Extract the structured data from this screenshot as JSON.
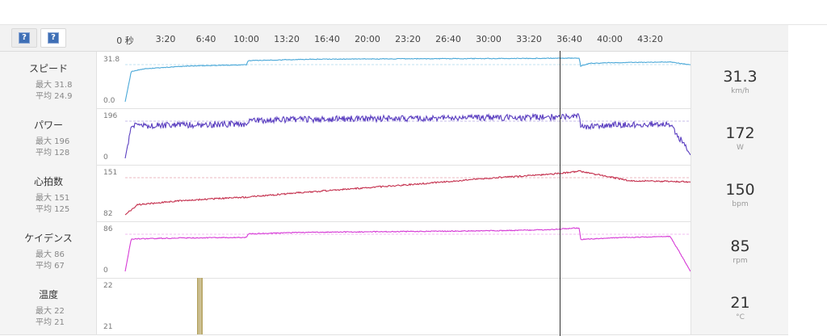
{
  "toolbar": {
    "buttons": [
      {
        "icon": "help-icon",
        "glyph": "?"
      },
      {
        "icon": "help-icon",
        "glyph": "?"
      }
    ],
    "ticks": [
      "0 秒",
      "3:20",
      "6:40",
      "10:00",
      "13:20",
      "16:40",
      "20:00",
      "23:20",
      "26:40",
      "30:00",
      "33:20",
      "36:40",
      "40:00",
      "43:20"
    ]
  },
  "rows": [
    {
      "key": "speed",
      "name": "スピード",
      "max": "最大 31.8",
      "avg": "平均 24.9",
      "ymax": "31.8",
      "ymin": "0.0",
      "value": "31.3",
      "unit": "km/h",
      "color": "#4aa8d8"
    },
    {
      "key": "power",
      "name": "パワー",
      "max": "最大 196",
      "avg": "平均 128",
      "ymax": "196",
      "ymin": "0",
      "value": "172",
      "unit": "W",
      "color": "#5a3ec0"
    },
    {
      "key": "heartrate",
      "name": "心拍数",
      "max": "最大 151",
      "avg": "平均 125",
      "ymax": "151",
      "ymin": "82",
      "value": "150",
      "unit": "bpm",
      "color": "#c42e4c"
    },
    {
      "key": "cadence",
      "name": "ケイデンス",
      "max": "最大 86",
      "avg": "平均 67",
      "ymax": "86",
      "ymin": "0",
      "value": "85",
      "unit": "rpm",
      "color": "#d63ad6"
    },
    {
      "key": "temperature",
      "name": "温度",
      "max": "最大 22",
      "avg": "平均 21",
      "ymax": "22",
      "ymin": "21",
      "value": "21",
      "unit": "°C",
      "color": "#b9a86a"
    }
  ],
  "chart_data": [
    {
      "type": "line",
      "series": "スピード",
      "ylim": [
        0,
        31.8
      ],
      "x_seconds": [
        0,
        30,
        90,
        300,
        600,
        610,
        900,
        1200,
        1500,
        1800,
        2100,
        2250,
        2255,
        2300,
        2400,
        2700,
        2800
      ],
      "values": [
        0,
        22,
        24,
        26,
        27,
        30,
        31,
        31.2,
        31.4,
        31.5,
        31.7,
        31.8,
        26,
        28,
        28.5,
        29,
        27
      ]
    },
    {
      "type": "line",
      "series": "パワー",
      "ylim": [
        0,
        196
      ],
      "x_seconds": [
        0,
        30,
        300,
        600,
        610,
        900,
        1200,
        1500,
        1800,
        2100,
        2250,
        2255,
        2400,
        2700,
        2800
      ],
      "values": [
        0,
        145,
        150,
        155,
        170,
        175,
        178,
        180,
        182,
        185,
        190,
        140,
        150,
        155,
        15
      ]
    },
    {
      "type": "line",
      "series": "心拍数",
      "ylim": [
        82,
        151
      ],
      "x_seconds": [
        0,
        60,
        300,
        600,
        900,
        1200,
        1500,
        1800,
        2100,
        2250,
        2350,
        2500,
        2700,
        2800
      ],
      "values": [
        82,
        98,
        105,
        110,
        118,
        125,
        132,
        140,
        146,
        151,
        145,
        136,
        135,
        134
      ]
    },
    {
      "type": "line",
      "series": "ケイデンス",
      "ylim": [
        0,
        86
      ],
      "x_seconds": [
        0,
        30,
        300,
        600,
        610,
        900,
        1200,
        1500,
        1800,
        2100,
        2250,
        2255,
        2400,
        2700,
        2800
      ],
      "values": [
        0,
        64,
        66,
        67,
        74,
        77,
        78,
        79,
        80,
        82,
        86,
        63,
        66,
        69,
        0
      ]
    },
    {
      "type": "line",
      "series": "温度",
      "ylim": [
        21,
        22
      ],
      "x_seconds": [
        360,
        370,
        380
      ],
      "values": [
        22,
        22,
        22
      ]
    }
  ],
  "chart_axis": {
    "xmin_seconds": 0,
    "xmax_seconds": 2800,
    "tick_seconds": [
      0,
      200,
      400,
      600,
      800,
      1000,
      1200,
      1400,
      1600,
      1800,
      2000,
      2200,
      2400,
      2600
    ],
    "cursor_seconds": 2252
  }
}
